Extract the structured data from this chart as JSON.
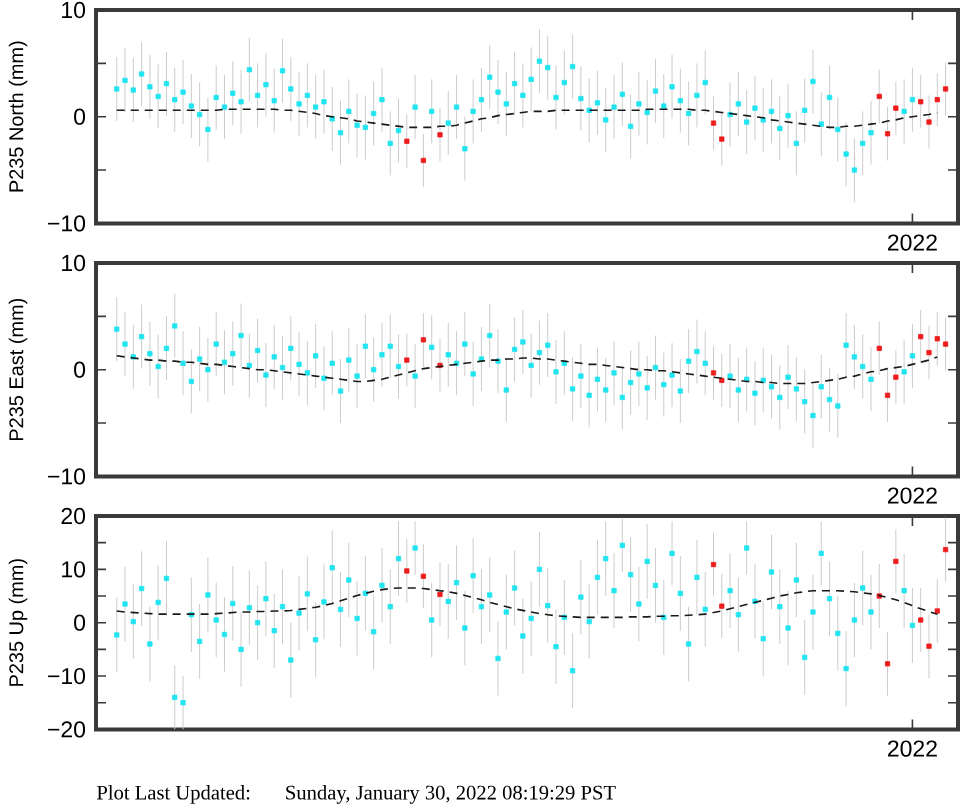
{
  "chart_data": [
    {
      "type": "scatter",
      "ylabel": "P235 North (mm)",
      "categories": [
        null,
        null,
        null,
        null,
        null,
        null,
        null,
        null,
        null,
        null,
        null,
        null,
        null,
        null,
        null,
        null,
        null,
        null,
        null,
        null,
        null,
        null,
        null,
        null,
        null,
        null,
        null,
        null,
        null,
        null,
        null,
        null,
        null,
        null,
        null,
        null,
        null,
        null,
        null,
        null,
        null,
        null,
        null,
        null,
        null,
        null,
        null,
        null,
        null,
        null,
        null,
        null,
        null,
        null,
        null,
        null,
        null,
        null,
        null,
        null,
        null,
        null,
        null,
        null,
        null,
        null,
        null,
        null,
        null,
        null,
        null,
        null,
        null,
        null,
        null,
        null,
        null,
        null,
        null,
        null,
        null,
        null,
        null,
        null,
        null,
        null,
        null,
        null,
        null,
        null,
        null,
        null,
        null,
        null,
        null,
        null,
        null,
        null,
        "2022",
        null,
        null,
        null,
        null,
        null
      ],
      "ylim": [
        -10,
        10
      ],
      "yticks": [
        {
          "value": -10,
          "label": "−10"
        },
        {
          "value": -5,
          "label": null
        },
        {
          "value": 0,
          "label": "0"
        },
        {
          "value": 5,
          "label": null
        },
        {
          "value": 10,
          "label": "10"
        }
      ],
      "series": [
        {
          "color": "#20e4f0",
          "marker": "square",
          "values": [
            null,
            null,
            2.6,
            3.4,
            2.5,
            4.0,
            2.8,
            1.9,
            3.1,
            1.6,
            2.3,
            1.0,
            0.2,
            -1.2,
            1.8,
            0.9,
            2.2,
            1.4,
            4.4,
            2.0,
            3.0,
            1.5,
            4.3,
            2.6,
            1.2,
            2.0,
            0.9,
            1.4,
            -0.2,
            -1.5,
            0.5,
            -0.8,
            -1.0,
            0.3,
            1.6,
            -2.5,
            -1.3,
            null,
            0.9,
            null,
            0.5,
            null,
            -0.6,
            0.9,
            -3.0,
            0.5,
            1.6,
            3.7,
            2.3,
            1.2,
            3.1,
            2.0,
            3.5,
            5.2,
            4.6,
            1.8,
            3.2,
            4.7,
            1.7,
            0.6,
            1.3,
            -0.3,
            0.9,
            2.1,
            -0.9,
            1.2,
            0.4,
            2.4,
            1.0,
            2.8,
            1.5,
            0.3,
            2.0,
            3.2,
            null,
            null,
            0.2,
            1.2,
            -0.5,
            0.8,
            -0.3,
            0.5,
            -1.1,
            0.1,
            -2.5,
            0.6,
            3.3,
            -0.7,
            1.8,
            -1.2,
            -3.5,
            -5.0,
            -2.5,
            -1.5,
            null,
            null,
            null,
            0.5,
            1.6,
            null,
            null,
            null,
            null,
            null
          ],
          "errors": [
            null,
            null,
            3,
            3,
            3,
            3,
            3,
            3,
            3,
            3,
            3,
            3,
            3,
            3,
            3,
            3,
            3,
            3,
            3,
            3,
            3,
            3,
            3,
            3,
            3,
            3,
            3,
            3,
            3,
            3,
            3,
            3,
            3,
            3,
            3,
            3,
            3,
            null,
            3,
            null,
            3,
            null,
            3,
            3,
            3,
            3,
            3,
            3,
            3,
            3,
            3,
            3,
            3,
            3,
            3,
            3,
            3,
            3,
            3,
            3,
            3,
            3,
            3,
            3,
            3,
            3,
            3,
            3,
            3,
            3,
            3,
            3,
            3,
            3,
            null,
            null,
            3,
            3,
            3,
            3,
            3,
            3,
            3,
            3,
            3,
            3,
            3,
            3,
            3,
            3,
            3,
            3,
            3,
            3,
            null,
            null,
            null,
            3,
            3,
            null,
            null,
            null,
            null,
            null
          ]
        },
        {
          "color": "#ee1c1c",
          "marker": "square",
          "values": [
            null,
            null,
            null,
            null,
            null,
            null,
            null,
            null,
            null,
            null,
            null,
            null,
            null,
            null,
            null,
            null,
            null,
            null,
            null,
            null,
            null,
            null,
            null,
            null,
            null,
            null,
            null,
            null,
            null,
            null,
            null,
            null,
            null,
            null,
            null,
            null,
            null,
            -2.3,
            null,
            -4.1,
            null,
            -1.7,
            null,
            null,
            null,
            null,
            null,
            null,
            null,
            null,
            null,
            null,
            null,
            null,
            null,
            null,
            null,
            null,
            null,
            null,
            null,
            null,
            null,
            null,
            null,
            null,
            null,
            null,
            null,
            null,
            null,
            null,
            null,
            null,
            -0.6,
            -2.1,
            null,
            null,
            null,
            null,
            null,
            null,
            null,
            null,
            null,
            null,
            null,
            null,
            null,
            null,
            null,
            null,
            null,
            null,
            1.9,
            -1.6,
            0.8,
            null,
            null,
            1.4,
            -0.5,
            1.6,
            2.6,
            null
          ],
          "errors": [
            null,
            null,
            null,
            null,
            null,
            null,
            null,
            null,
            null,
            null,
            null,
            null,
            null,
            null,
            null,
            null,
            null,
            null,
            null,
            null,
            null,
            null,
            null,
            null,
            null,
            null,
            null,
            null,
            null,
            null,
            null,
            null,
            null,
            null,
            null,
            null,
            null,
            2.5,
            null,
            2.5,
            null,
            2.5,
            null,
            null,
            null,
            null,
            null,
            null,
            null,
            null,
            null,
            null,
            null,
            null,
            null,
            null,
            null,
            null,
            null,
            null,
            null,
            null,
            null,
            null,
            null,
            null,
            null,
            null,
            null,
            null,
            null,
            null,
            null,
            null,
            2.5,
            2.5,
            null,
            null,
            null,
            null,
            null,
            null,
            null,
            null,
            null,
            null,
            null,
            null,
            null,
            null,
            null,
            null,
            null,
            null,
            2.5,
            2.5,
            2.5,
            null,
            null,
            2.5,
            2.5,
            2.5,
            2.5,
            null
          ]
        },
        {
          "type": "line",
          "color": "#1a1a1a",
          "line_style": "dashed",
          "marker": "none",
          "values": [
            null,
            null,
            0.6,
            0.6,
            0.6,
            0.6,
            0.6,
            0.6,
            0.6,
            0.6,
            0.6,
            0.6,
            0.6,
            0.6,
            0.6,
            0.7,
            0.7,
            0.7,
            0.7,
            0.7,
            0.7,
            0.7,
            0.6,
            0.6,
            0.5,
            0.4,
            0.3,
            0.1,
            0.0,
            -0.1,
            -0.2,
            -0.4,
            -0.5,
            -0.6,
            -0.7,
            -0.8,
            -0.9,
            -1.0,
            -1.0,
            -1.0,
            -1.0,
            -0.9,
            -0.9,
            -0.8,
            -0.6,
            -0.4,
            -0.2,
            -0.1,
            0.1,
            0.2,
            0.3,
            0.4,
            0.5,
            0.5,
            0.5,
            0.6,
            0.6,
            0.6,
            0.6,
            0.6,
            0.6,
            0.6,
            0.6,
            0.6,
            0.6,
            0.6,
            0.7,
            0.7,
            0.7,
            0.7,
            0.7,
            0.7,
            0.6,
            0.6,
            0.5,
            0.4,
            0.3,
            0.2,
            0.1,
            0.0,
            -0.1,
            -0.3,
            -0.4,
            -0.5,
            -0.6,
            -0.7,
            -0.8,
            -0.9,
            -1.0,
            -1.0,
            -0.9,
            -0.9,
            -0.8,
            -0.7,
            -0.6,
            -0.4,
            -0.3,
            -0.1,
            0.0,
            0.1,
            0.2,
            0.4,
            null,
            null
          ]
        }
      ]
    },
    {
      "type": "scatter",
      "ylabel": "P235 East (mm)",
      "categories": [
        null,
        null,
        null,
        null,
        null,
        null,
        null,
        null,
        null,
        null,
        null,
        null,
        null,
        null,
        null,
        null,
        null,
        null,
        null,
        null,
        null,
        null,
        null,
        null,
        null,
        null,
        null,
        null,
        null,
        null,
        null,
        null,
        null,
        null,
        null,
        null,
        null,
        null,
        null,
        null,
        null,
        null,
        null,
        null,
        null,
        null,
        null,
        null,
        null,
        null,
        null,
        null,
        null,
        null,
        null,
        null,
        null,
        null,
        null,
        null,
        null,
        null,
        null,
        null,
        null,
        null,
        null,
        null,
        null,
        null,
        null,
        null,
        null,
        null,
        null,
        null,
        null,
        null,
        null,
        null,
        null,
        null,
        null,
        null,
        null,
        null,
        null,
        null,
        null,
        null,
        null,
        null,
        null,
        null,
        null,
        null,
        null,
        null,
        "2022",
        null,
        null,
        null,
        null,
        null
      ],
      "ylim": [
        -10,
        10
      ],
      "yticks": [
        {
          "value": -10,
          "label": "−10"
        },
        {
          "value": -5,
          "label": null
        },
        {
          "value": 0,
          "label": "0"
        },
        {
          "value": 5,
          "label": null
        },
        {
          "value": 10,
          "label": "10"
        }
      ],
      "series": [
        {
          "color": "#20e4f0",
          "marker": "square",
          "values": [
            null,
            null,
            3.8,
            2.4,
            1.2,
            3.1,
            1.5,
            0.3,
            2.0,
            4.1,
            0.6,
            -1.1,
            1.0,
            0.0,
            2.4,
            0.7,
            1.5,
            3.2,
            0.4,
            1.8,
            -0.5,
            1.2,
            0.2,
            2.0,
            0.5,
            -0.3,
            1.3,
            -0.8,
            0.6,
            -2.0,
            0.9,
            -0.6,
            2.2,
            0.0,
            1.4,
            2.2,
            0.3,
            null,
            -0.6,
            null,
            2.1,
            null,
            1.4,
            0.6,
            2.4,
            -0.4,
            1.0,
            3.2,
            0.8,
            -1.9,
            1.9,
            2.6,
            0.4,
            1.6,
            2.3,
            -0.2,
            0.6,
            -1.8,
            -0.6,
            -2.4,
            -0.9,
            -1.9,
            -0.3,
            -2.6,
            -1.2,
            -0.4,
            -1.7,
            0.2,
            -1.4,
            -0.5,
            -2.0,
            0.8,
            1.7,
            0.6,
            null,
            null,
            -0.6,
            -1.9,
            -0.9,
            -2.2,
            -1.0,
            -1.6,
            -2.6,
            -0.7,
            -1.8,
            -3.0,
            -4.3,
            -1.6,
            -2.8,
            -3.4,
            2.3,
            1.2,
            0.3,
            -0.9,
            null,
            null,
            null,
            -0.2,
            1.3,
            null,
            null,
            null,
            null,
            null
          ],
          "errors": [
            null,
            null,
            3,
            3,
            3,
            3,
            3,
            3,
            3,
            3,
            3,
            3,
            3,
            3,
            3,
            3,
            3,
            3,
            3,
            3,
            3,
            3,
            3,
            3,
            3,
            3,
            3,
            3,
            3,
            3,
            3,
            3,
            3,
            3,
            3,
            3,
            3,
            null,
            3,
            null,
            3,
            null,
            3,
            3,
            3,
            3,
            3,
            3,
            3,
            3,
            3,
            3,
            3,
            3,
            3,
            3,
            3,
            3,
            3,
            3,
            3,
            3,
            3,
            3,
            3,
            3,
            3,
            3,
            3,
            3,
            3,
            3,
            3,
            3,
            null,
            null,
            3,
            3,
            3,
            3,
            3,
            3,
            3,
            3,
            3,
            3,
            3,
            3,
            3,
            3,
            3,
            3,
            3,
            3,
            null,
            null,
            null,
            3,
            3,
            null,
            null,
            null,
            null,
            null
          ]
        },
        {
          "color": "#ee1c1c",
          "marker": "square",
          "values": [
            null,
            null,
            null,
            null,
            null,
            null,
            null,
            null,
            null,
            null,
            null,
            null,
            null,
            null,
            null,
            null,
            null,
            null,
            null,
            null,
            null,
            null,
            null,
            null,
            null,
            null,
            null,
            null,
            null,
            null,
            null,
            null,
            null,
            null,
            null,
            null,
            null,
            0.9,
            null,
            2.8,
            null,
            0.4,
            null,
            null,
            null,
            null,
            null,
            null,
            null,
            null,
            null,
            null,
            null,
            null,
            null,
            null,
            null,
            null,
            null,
            null,
            null,
            null,
            null,
            null,
            null,
            null,
            null,
            null,
            null,
            null,
            null,
            null,
            null,
            null,
            -0.3,
            -1.0,
            null,
            null,
            null,
            null,
            null,
            null,
            null,
            null,
            null,
            null,
            null,
            null,
            null,
            null,
            null,
            null,
            null,
            null,
            2.0,
            -2.4,
            -0.7,
            null,
            null,
            3.1,
            1.6,
            2.9,
            2.4,
            null
          ],
          "errors": [
            null,
            null,
            null,
            null,
            null,
            null,
            null,
            null,
            null,
            null,
            null,
            null,
            null,
            null,
            null,
            null,
            null,
            null,
            null,
            null,
            null,
            null,
            null,
            null,
            null,
            null,
            null,
            null,
            null,
            null,
            null,
            null,
            null,
            null,
            null,
            null,
            null,
            2.5,
            null,
            2.5,
            null,
            2.5,
            null,
            null,
            null,
            null,
            null,
            null,
            null,
            null,
            null,
            null,
            null,
            null,
            null,
            null,
            null,
            null,
            null,
            null,
            null,
            null,
            null,
            null,
            null,
            null,
            null,
            null,
            null,
            null,
            null,
            null,
            null,
            null,
            2.5,
            2.5,
            null,
            null,
            null,
            null,
            null,
            null,
            null,
            null,
            null,
            null,
            null,
            null,
            null,
            null,
            null,
            null,
            null,
            null,
            2.5,
            2.5,
            2.5,
            null,
            null,
            2.5,
            2.5,
            2.5,
            2.5,
            null
          ]
        },
        {
          "type": "line",
          "color": "#1a1a1a",
          "line_style": "dashed",
          "marker": "none",
          "values": [
            null,
            null,
            1.3,
            1.2,
            1.1,
            1.0,
            0.9,
            0.9,
            0.8,
            0.8,
            0.7,
            0.7,
            0.6,
            0.5,
            0.5,
            0.4,
            0.3,
            0.2,
            0.1,
            0.0,
            0.0,
            -0.1,
            -0.2,
            -0.3,
            -0.4,
            -0.5,
            -0.6,
            -0.7,
            -0.8,
            -0.9,
            -1.0,
            -1.1,
            -1.1,
            -1.0,
            -0.9,
            -0.7,
            -0.5,
            -0.3,
            -0.1,
            0.1,
            0.2,
            0.3,
            0.4,
            0.5,
            0.6,
            0.7,
            0.8,
            0.9,
            0.9,
            1.0,
            1.0,
            1.1,
            1.1,
            1.0,
            1.0,
            0.9,
            0.8,
            0.7,
            0.6,
            0.5,
            0.5,
            0.4,
            0.3,
            0.2,
            0.1,
            0.0,
            0.0,
            -0.1,
            -0.1,
            -0.2,
            -0.3,
            -0.4,
            -0.5,
            -0.6,
            -0.7,
            -0.8,
            -0.9,
            -1.0,
            -1.1,
            -1.1,
            -1.2,
            -1.2,
            -1.3,
            -1.3,
            -1.3,
            -1.3,
            -1.2,
            -1.1,
            -1.0,
            -0.9,
            -0.7,
            -0.6,
            -0.4,
            -0.2,
            -0.1,
            0.1,
            0.2,
            0.3,
            0.5,
            0.7,
            0.9,
            1.2,
            null,
            null
          ]
        }
      ]
    },
    {
      "type": "scatter",
      "ylabel": "P235 Up (mm)",
      "categories": [
        null,
        null,
        null,
        null,
        null,
        null,
        null,
        null,
        null,
        null,
        null,
        null,
        null,
        null,
        null,
        null,
        null,
        null,
        null,
        null,
        null,
        null,
        null,
        null,
        null,
        null,
        null,
        null,
        null,
        null,
        null,
        null,
        null,
        null,
        null,
        null,
        null,
        null,
        null,
        null,
        null,
        null,
        null,
        null,
        null,
        null,
        null,
        null,
        null,
        null,
        null,
        null,
        null,
        null,
        null,
        null,
        null,
        null,
        null,
        null,
        null,
        null,
        null,
        null,
        null,
        null,
        null,
        null,
        null,
        null,
        null,
        null,
        null,
        null,
        null,
        null,
        null,
        null,
        null,
        null,
        null,
        null,
        null,
        null,
        null,
        null,
        null,
        null,
        null,
        null,
        null,
        null,
        null,
        null,
        null,
        null,
        null,
        null,
        "2022",
        null,
        null,
        null,
        null,
        null
      ],
      "ylim": [
        -20,
        20
      ],
      "yticks": [
        {
          "value": -20,
          "label": "−20"
        },
        {
          "value": -15,
          "label": null
        },
        {
          "value": -10,
          "label": "−10"
        },
        {
          "value": -5,
          "label": null
        },
        {
          "value": 0,
          "label": "0"
        },
        {
          "value": 5,
          "label": null
        },
        {
          "value": 10,
          "label": "10"
        },
        {
          "value": 15,
          "label": null
        },
        {
          "value": 20,
          "label": "20"
        }
      ],
      "annotations": [
        "Plot Last Updated:",
        "Sunday, January 30, 2022 08:19:29 PST"
      ],
      "series": [
        {
          "color": "#20e4f0",
          "marker": "square",
          "values": [
            null,
            null,
            -2.3,
            3.5,
            0.2,
            6.4,
            -4.0,
            3.8,
            8.3,
            -14.0,
            -15.0,
            1.5,
            -3.5,
            5.2,
            0.5,
            -2.2,
            3.6,
            -5.0,
            2.8,
            0.0,
            4.5,
            -1.5,
            3.0,
            -7.0,
            1.8,
            5.4,
            -3.2,
            3.9,
            10.3,
            2.5,
            8.0,
            0.8,
            5.5,
            -1.7,
            7.0,
            3.0,
            12.0,
            null,
            14.0,
            null,
            0.5,
            null,
            4.0,
            7.5,
            -1.0,
            8.8,
            3.0,
            5.2,
            -6.7,
            2.0,
            6.5,
            -2.5,
            0.8,
            10.0,
            3.2,
            -4.5,
            1.0,
            -9.0,
            4.8,
            0.2,
            8.5,
            12.0,
            6.0,
            14.5,
            9.0,
            3.5,
            11.5,
            7.0,
            1.0,
            13.0,
            5.5,
            -4.0,
            8.5,
            2.5,
            null,
            null,
            6.0,
            1.5,
            14.0,
            4.0,
            -3.0,
            9.5,
            3.0,
            -1.0,
            8.0,
            -6.5,
            2.0,
            13.0,
            4.5,
            -2.0,
            -8.6,
            0.5,
            6.5,
            2.0,
            null,
            null,
            null,
            6.0,
            -0.5,
            null,
            null,
            null,
            null,
            null
          ],
          "errors": [
            null,
            null,
            7,
            7,
            7,
            7,
            7,
            7,
            7,
            6,
            5,
            7,
            7,
            7,
            7,
            7,
            7,
            7,
            7,
            7,
            7,
            7,
            7,
            7,
            7,
            7,
            7,
            7,
            7,
            7,
            7,
            7,
            7,
            7,
            7,
            7,
            7,
            null,
            5,
            null,
            7,
            null,
            7,
            7,
            7,
            7,
            7,
            7,
            7,
            7,
            7,
            7,
            7,
            7,
            7,
            7,
            7,
            7,
            7,
            7,
            7,
            7,
            7,
            5,
            7,
            7,
            7,
            7,
            7,
            6,
            7,
            7,
            7,
            7,
            null,
            null,
            7,
            7,
            5,
            7,
            7,
            7,
            7,
            7,
            7,
            7,
            7,
            6,
            7,
            7,
            7,
            7,
            7,
            7,
            null,
            null,
            null,
            7,
            7,
            null,
            null,
            null,
            null,
            null
          ]
        },
        {
          "color": "#ee1c1c",
          "marker": "square",
          "values": [
            null,
            null,
            null,
            null,
            null,
            null,
            null,
            null,
            null,
            null,
            null,
            null,
            null,
            null,
            null,
            null,
            null,
            null,
            null,
            null,
            null,
            null,
            null,
            null,
            null,
            null,
            null,
            null,
            null,
            null,
            null,
            null,
            null,
            null,
            null,
            null,
            null,
            9.7,
            null,
            8.7,
            null,
            5.3,
            null,
            null,
            null,
            null,
            null,
            null,
            null,
            null,
            null,
            null,
            null,
            null,
            null,
            null,
            null,
            null,
            null,
            null,
            null,
            null,
            null,
            null,
            null,
            null,
            null,
            null,
            null,
            null,
            null,
            null,
            null,
            null,
            10.9,
            3.1,
            null,
            null,
            null,
            null,
            null,
            null,
            null,
            null,
            null,
            null,
            null,
            null,
            null,
            null,
            null,
            null,
            null,
            null,
            5.0,
            -7.7,
            11.5,
            null,
            null,
            0.5,
            -4.4,
            2.2,
            13.7,
            null
          ],
          "errors": [
            null,
            null,
            null,
            null,
            null,
            null,
            null,
            null,
            null,
            null,
            null,
            null,
            null,
            null,
            null,
            null,
            null,
            null,
            null,
            null,
            null,
            null,
            null,
            null,
            null,
            null,
            null,
            null,
            null,
            null,
            null,
            null,
            null,
            null,
            null,
            null,
            null,
            6,
            null,
            6,
            null,
            6,
            null,
            null,
            null,
            null,
            null,
            null,
            null,
            null,
            null,
            null,
            null,
            null,
            null,
            null,
            null,
            null,
            null,
            null,
            null,
            null,
            null,
            null,
            null,
            null,
            null,
            null,
            null,
            null,
            null,
            null,
            null,
            null,
            6,
            6,
            null,
            null,
            null,
            null,
            null,
            null,
            null,
            null,
            null,
            null,
            null,
            null,
            null,
            null,
            null,
            null,
            null,
            null,
            6,
            6,
            6,
            null,
            null,
            6,
            6,
            6,
            6,
            null
          ]
        },
        {
          "type": "line",
          "color": "#1a1a1a",
          "line_style": "dashed",
          "marker": "none",
          "values": [
            null,
            null,
            2.2,
            2.0,
            1.9,
            1.8,
            1.7,
            1.6,
            1.6,
            1.6,
            1.6,
            1.6,
            1.6,
            1.6,
            1.7,
            1.8,
            1.9,
            2.0,
            2.0,
            2.1,
            2.1,
            2.2,
            2.2,
            2.3,
            2.5,
            2.7,
            2.9,
            3.2,
            3.6,
            4.1,
            4.6,
            5.1,
            5.5,
            5.9,
            6.2,
            6.4,
            6.5,
            6.5,
            6.5,
            6.4,
            6.2,
            6.0,
            5.8,
            5.5,
            5.1,
            4.7,
            4.3,
            3.8,
            3.4,
            3.0,
            2.6,
            2.3,
            2.0,
            1.7,
            1.5,
            1.3,
            1.2,
            1.1,
            1.0,
            1.0,
            1.0,
            1.0,
            1.0,
            1.0,
            1.1,
            1.1,
            1.1,
            1.2,
            1.2,
            1.3,
            1.3,
            1.4,
            1.5,
            1.6,
            1.9,
            2.2,
            2.6,
            3.0,
            3.4,
            3.8,
            4.2,
            4.6,
            5.0,
            5.3,
            5.6,
            5.8,
            6.0,
            6.0,
            6.0,
            6.0,
            5.9,
            5.8,
            5.6,
            5.4,
            5.1,
            4.7,
            4.3,
            3.8,
            3.2,
            2.6,
            2.1,
            1.6,
            null,
            null
          ]
        }
      ]
    }
  ]
}
